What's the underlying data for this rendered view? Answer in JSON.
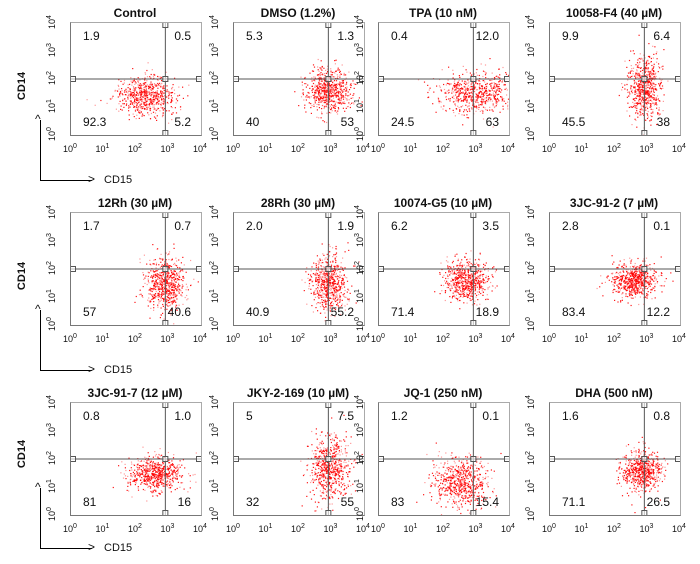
{
  "chart_data": {
    "type": "scatter",
    "xlabel": "CD15",
    "ylabel": "CD14",
    "axis_scale": "log10",
    "xlim": [
      1,
      10000
    ],
    "ylim": [
      1,
      10000
    ],
    "tick_base": "10",
    "tick_exponents": [
      "0",
      "1",
      "2",
      "3",
      "4"
    ],
    "gate": {
      "cd15": 800,
      "cd14": 100
    },
    "panels": [
      {
        "title": "Control",
        "quadrants": {
          "ul": "1.9",
          "ur": "0.5",
          "ll": "92.3",
          "lr": "5.2"
        },
        "center": [
          2.3,
          1.4
        ],
        "spread": [
          0.45,
          0.35
        ]
      },
      {
        "title": "DMSO (1.2%)",
        "quadrants": {
          "ul": "5.3",
          "ur": "1.3",
          "ll": "40",
          "lr": "53"
        },
        "center": [
          2.9,
          1.6
        ],
        "spread": [
          0.35,
          0.4
        ]
      },
      {
        "title": "TPA (10 nM)",
        "quadrants": {
          "ul": "0.4",
          "ur": "12.0",
          "ll": "24.5",
          "lr": "63"
        },
        "center": [
          3.0,
          1.5
        ],
        "spread": [
          0.55,
          0.35
        ]
      },
      {
        "title": "10058-F4 (40 µM)",
        "quadrants": {
          "ul": "9.9",
          "ur": "6.4",
          "ll": "45.5",
          "lr": "38"
        },
        "center": [
          2.9,
          1.7
        ],
        "spread": [
          0.25,
          0.55
        ]
      },
      {
        "title": "12Rh (30 µM)",
        "quadrants": {
          "ul": "1.7",
          "ur": "0.7",
          "ll": "57",
          "lr": "40.6"
        },
        "center": [
          2.9,
          1.5
        ],
        "spread": [
          0.3,
          0.45
        ]
      },
      {
        "title": "28Rh (30 µM)",
        "quadrants": {
          "ul": "2.0",
          "ur": "1.9",
          "ll": "40.9",
          "lr": "55.2"
        },
        "center": [
          2.9,
          1.5
        ],
        "spread": [
          0.3,
          0.5
        ]
      },
      {
        "title": "10074-G5 (10 µM)",
        "quadrants": {
          "ul": "6.2",
          "ur": "3.5",
          "ll": "71.4",
          "lr": "18.9"
        },
        "center": [
          2.7,
          1.6
        ],
        "spread": [
          0.35,
          0.35
        ]
      },
      {
        "title": "3JC-91-2 (7 µM)",
        "quadrants": {
          "ul": "2.8",
          "ur": "0.1",
          "ll": "83.4",
          "lr": "12.2"
        },
        "center": [
          2.6,
          1.6
        ],
        "spread": [
          0.35,
          0.3
        ]
      },
      {
        "title": "3JC-91-7 (12 µM)",
        "quadrants": {
          "ul": "0.8",
          "ur": "1.0",
          "ll": "81",
          "lr": "16"
        },
        "center": [
          2.6,
          1.5
        ],
        "spread": [
          0.4,
          0.3
        ]
      },
      {
        "title": "JKY-2-169 (10 µM)",
        "quadrants": {
          "ul": "5",
          "ur": "7.5",
          "ll": "32",
          "lr": "55"
        },
        "center": [
          2.9,
          1.7
        ],
        "spread": [
          0.3,
          0.55
        ]
      },
      {
        "title": "JQ-1 (250 nM)",
        "quadrants": {
          "ul": "1.2",
          "ur": "0.1",
          "ll": "83",
          "lr": "15.4"
        },
        "center": [
          2.5,
          1.2
        ],
        "spread": [
          0.45,
          0.45
        ]
      },
      {
        "title": "DHA (500 nM)",
        "quadrants": {
          "ul": "1.6",
          "ur": "0.8",
          "ll": "71.1",
          "lr": "26.5"
        },
        "center": [
          2.8,
          1.6
        ],
        "spread": [
          0.3,
          0.35
        ]
      }
    ]
  },
  "colors": {
    "dots": "#ff0000",
    "gate": "#555555"
  }
}
